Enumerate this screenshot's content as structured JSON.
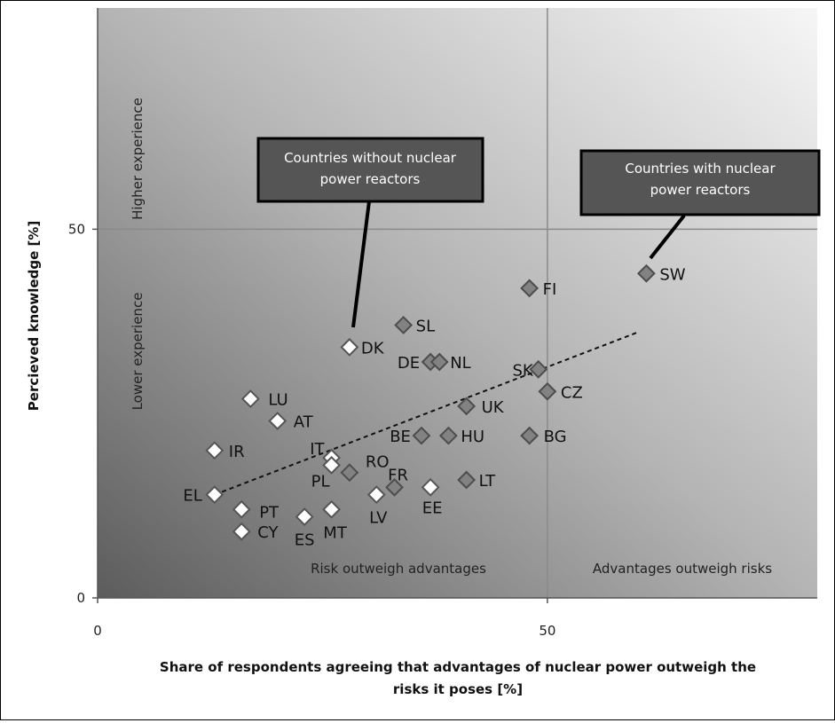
{
  "chart_data": {
    "type": "scatter",
    "xlabel_lines": [
      "Share of respondents agreeing that advantages of nuclear power outweigh the",
      "risks it poses [%]"
    ],
    "ylabel": "Percieved knowledge [%]",
    "xlim": [
      0,
      80
    ],
    "ylim": [
      0,
      80
    ],
    "x_ticks": [
      "0",
      "50"
    ],
    "y_ticks": [
      "0",
      "50"
    ],
    "reference_lines": {
      "x": 50,
      "y": 50
    },
    "regions": {
      "higher_experience": "Higher experience",
      "lower_experience": "Lower experience",
      "risk_outweigh": "Risk outweigh advantages",
      "advantages_outweigh": "Advantages outweigh risks"
    },
    "callouts": {
      "without": [
        "Countries without nuclear",
        "power reactors"
      ],
      "with": [
        "Countries with nuclear",
        "power reactors"
      ]
    },
    "trendline": {
      "from": [
        13,
        14
      ],
      "to": [
        60,
        36
      ]
    },
    "series": [
      {
        "name": "Countries without nuclear power reactors",
        "points": [
          {
            "label": "DK",
            "x": 28,
            "y": 34
          },
          {
            "label": "LU",
            "x": 17,
            "y": 27
          },
          {
            "label": "AT",
            "x": 20,
            "y": 24
          },
          {
            "label": "IR",
            "x": 13,
            "y": 20
          },
          {
            "label": "IT",
            "x": 26,
            "y": 19
          },
          {
            "label": "PL",
            "x": 26,
            "y": 18
          },
          {
            "label": "EL",
            "x": 13,
            "y": 14
          },
          {
            "label": "PT",
            "x": 16,
            "y": 12
          },
          {
            "label": "CY",
            "x": 16,
            "y": 9
          },
          {
            "label": "ES",
            "x": 23,
            "y": 11
          },
          {
            "label": "MT",
            "x": 26,
            "y": 12
          },
          {
            "label": "LV",
            "x": 31,
            "y": 14
          },
          {
            "label": "EE",
            "x": 37,
            "y": 15
          }
        ]
      },
      {
        "name": "Countries with nuclear power reactors",
        "points": [
          {
            "label": "SW",
            "x": 61,
            "y": 44
          },
          {
            "label": "FI",
            "x": 48,
            "y": 42
          },
          {
            "label": "SL",
            "x": 34,
            "y": 37
          },
          {
            "label": "DE",
            "x": 37,
            "y": 32
          },
          {
            "label": "NL",
            "x": 38,
            "y": 32
          },
          {
            "label": "SK",
            "x": 49,
            "y": 31
          },
          {
            "label": "CZ",
            "x": 50,
            "y": 28
          },
          {
            "label": "UK",
            "x": 41,
            "y": 26
          },
          {
            "label": "BE",
            "x": 36,
            "y": 22
          },
          {
            "label": "HU",
            "x": 39,
            "y": 22
          },
          {
            "label": "BG",
            "x": 48,
            "y": 22
          },
          {
            "label": "RO",
            "x": 28,
            "y": 17
          },
          {
            "label": "FR",
            "x": 33,
            "y": 15
          },
          {
            "label": "LT",
            "x": 41,
            "y": 16
          }
        ]
      }
    ]
  }
}
